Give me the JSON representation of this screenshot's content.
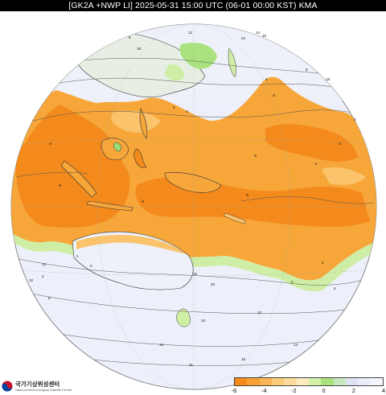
{
  "title": "[GK2A +NWP LI] 2025-05-31 15:00 UTC (06-01 00:00 KST) KMA",
  "organization": {
    "name_ko": "국가기상위성센터",
    "name_en": "National Meteorological Satellite Center"
  },
  "colorbar": {
    "ticks": [
      "-6",
      "-4",
      "-2",
      "0",
      "2",
      "4"
    ],
    "colors": [
      "#f5891a",
      "#f7a035",
      "#f9b553",
      "#facb78",
      "#fbdc9c",
      "#fcebc0",
      "#d3f0a6",
      "#a9e27e",
      "#c8e9c0",
      "#dfe3f5",
      "#eaedfa",
      "#f4f5fc"
    ]
  },
  "map": {
    "colors": {
      "space": "#ffffff",
      "ocean_stable": "#edf0fa",
      "very_unstable": "#f48a1c",
      "unstable": "#f7a63a",
      "moderate": "#fac36c",
      "slightly_stable": "#cfeea5",
      "green": "#9bdc76",
      "coast": "#333333",
      "contour": "#555555"
    },
    "contour_labels": [
      "-6",
      "-6",
      "-6",
      "-6",
      "-4",
      "-4",
      "-2",
      "-2",
      "-2",
      "0",
      "0",
      "0",
      "0",
      "2",
      "2",
      "4",
      "4",
      "6",
      "6",
      "8",
      "8",
      "10",
      "10",
      "12",
      "12",
      "12",
      "14",
      "14",
      "15",
      "15",
      "16",
      "16",
      "18",
      "18",
      "20",
      "21",
      "24"
    ]
  }
}
